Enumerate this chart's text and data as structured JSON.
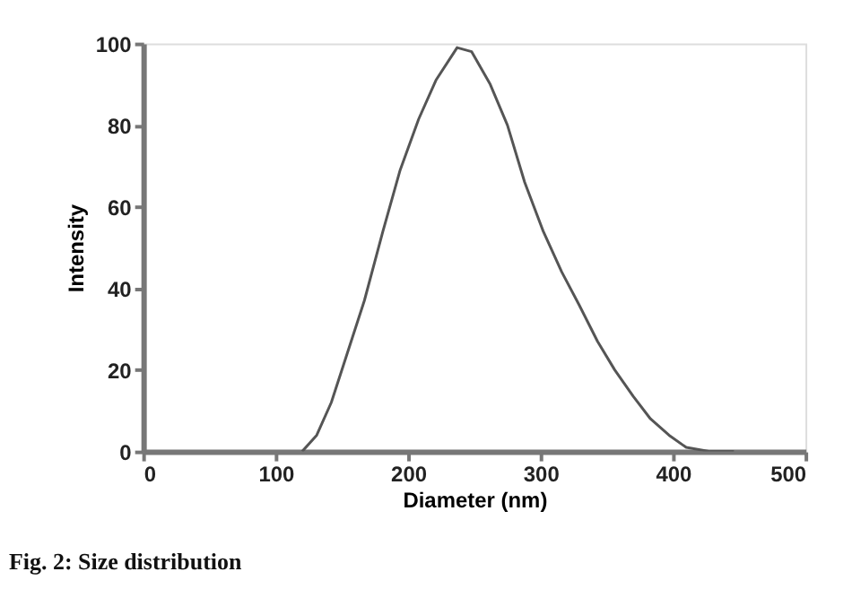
{
  "chart_data": {
    "type": "line",
    "xlabel": "Diameter (nm)",
    "ylabel": "Intensity",
    "x": [
      120,
      131,
      142,
      153,
      167,
      181,
      194,
      208,
      221,
      237,
      248,
      262,
      275,
      288,
      302,
      316,
      329,
      343,
      356,
      370,
      383,
      397,
      410,
      428,
      446
    ],
    "series": [
      {
        "color": "#555555",
        "values": [
          0,
          4,
          12,
          23,
          37,
          54,
          69,
          81.5,
          91,
          99,
          98,
          90,
          80,
          66,
          54,
          44,
          36,
          27,
          20,
          13.5,
          8,
          4,
          1,
          0,
          0
        ]
      }
    ],
    "xlim": [
      0,
      500
    ],
    "xticks": [
      0,
      100,
      200,
      300,
      400,
      500
    ],
    "ylim": [
      0,
      100
    ],
    "yticks": [
      0,
      20,
      40,
      60,
      80,
      100
    ],
    "grid": false,
    "legend": false,
    "marker": "none",
    "line_style": "solid",
    "annotations": [
      "Fig. 2: Size distribution"
    ]
  }
}
